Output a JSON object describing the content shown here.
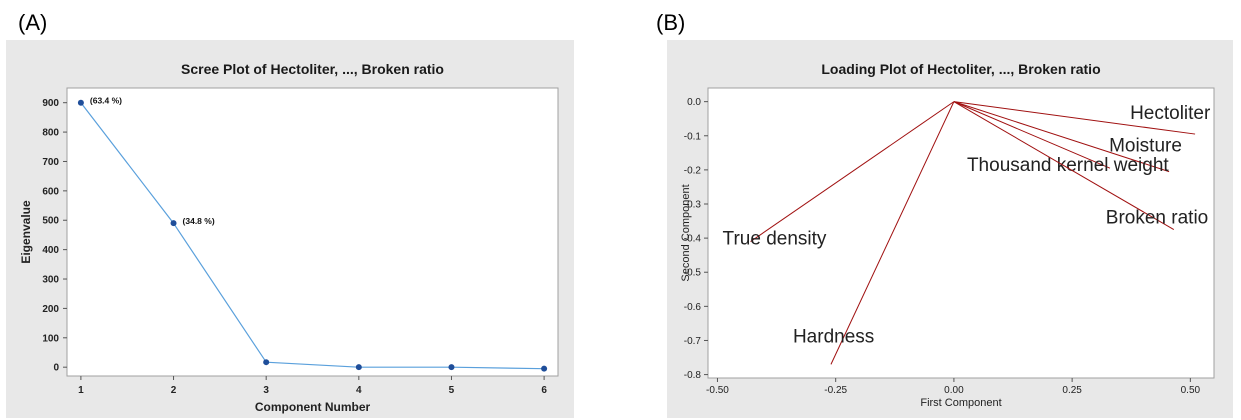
{
  "panels": {
    "a_label": "(A)",
    "b_label": "(B)"
  },
  "colors": {
    "panel_bg": "#e8e8e8",
    "scree_line": "#5aa0dc",
    "scree_marker": "#1f4e9a",
    "loading_line": "#a01010"
  },
  "chart_data": [
    {
      "type": "line",
      "title": "Scree Plot of Hectoliter, ..., Broken ratio",
      "xlabel": "Component Number",
      "ylabel": "Eigenvalue",
      "x": [
        1,
        2,
        3,
        4,
        5,
        6
      ],
      "values": [
        900,
        490,
        17,
        0,
        0,
        -5
      ],
      "point_labels": [
        "(63.4 %)",
        "(34.8 %)",
        "",
        "",
        "",
        ""
      ],
      "xlim": [
        0.85,
        6.15
      ],
      "ylim": [
        -30,
        950
      ],
      "xticks": [
        1,
        2,
        3,
        4,
        5,
        6
      ],
      "yticks": [
        0,
        100,
        200,
        300,
        400,
        500,
        600,
        700,
        800,
        900
      ],
      "grid": false
    },
    {
      "type": "loading",
      "title": "Loading Plot of Hectoliter, ..., Broken ratio",
      "xlabel": "First Component",
      "ylabel": "Second Component",
      "xlim": [
        -0.52,
        0.55
      ],
      "ylim": [
        -0.81,
        0.04
      ],
      "xticks": [
        -0.5,
        -0.25,
        0.0,
        0.25,
        0.5
      ],
      "xtick_labels": [
        "-0.50",
        "-0.25",
        "0.00",
        "0.25",
        "0.50"
      ],
      "yticks": [
        0.0,
        -0.1,
        -0.2,
        -0.3,
        -0.4,
        -0.5,
        -0.6,
        -0.7,
        -0.8
      ],
      "ytick_labels": [
        "0.0",
        "-0.1",
        "-0.2",
        "-0.3",
        "-0.4",
        "-0.5",
        "-0.6",
        "-0.7",
        "-0.8"
      ],
      "vectors": [
        {
          "name": "Hectoliter",
          "x": 0.51,
          "y": -0.095
        },
        {
          "name": "Moisture",
          "x": 0.455,
          "y": -0.205
        },
        {
          "name": "Thousand kernel weight",
          "x": 0.33,
          "y": -0.195
        },
        {
          "name": "Broken ratio",
          "x": 0.465,
          "y": -0.375
        },
        {
          "name": "True density",
          "x": -0.43,
          "y": -0.41
        },
        {
          "name": "Hardness",
          "x": -0.26,
          "y": -0.77
        }
      ],
      "grid": false
    }
  ]
}
